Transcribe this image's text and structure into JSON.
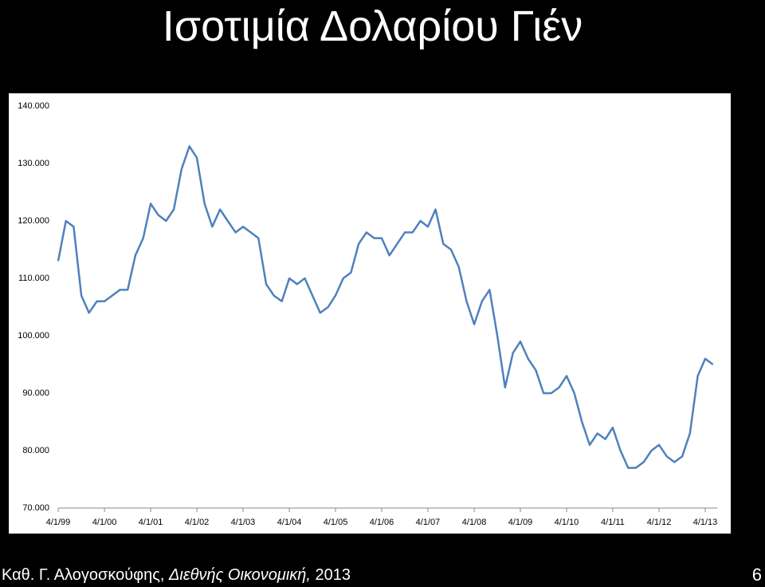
{
  "slide": {
    "title": "Ισοτιμία Δολαρίου Γιέν",
    "footer_author": "Καθ. Γ. Αλογοσκούφης,",
    "footer_course": "Διεθνής Οικονομική,",
    "footer_year": "2013",
    "page_number": "6"
  },
  "chart_data": {
    "type": "line",
    "x": [
      "4/1/99",
      "6/1/99",
      "8/1/99",
      "10/1/99",
      "12/1/99",
      "2/1/00",
      "4/1/00",
      "6/1/00",
      "8/1/00",
      "10/1/00",
      "12/1/00",
      "2/1/01",
      "4/1/01",
      "6/1/01",
      "8/1/01",
      "10/1/01",
      "12/1/01",
      "2/1/02",
      "4/1/02",
      "6/1/02",
      "8/1/02",
      "10/1/02",
      "12/1/02",
      "2/1/03",
      "4/1/03",
      "6/1/03",
      "8/1/03",
      "10/1/03",
      "12/1/03",
      "2/1/04",
      "4/1/04",
      "6/1/04",
      "8/1/04",
      "10/1/04",
      "12/1/04",
      "2/1/05",
      "4/1/05",
      "6/1/05",
      "8/1/05",
      "10/1/05",
      "12/1/05",
      "2/1/06",
      "4/1/06",
      "6/1/06",
      "8/1/06",
      "10/1/06",
      "12/1/06",
      "2/1/07",
      "4/1/07",
      "6/1/07",
      "8/1/07",
      "10/1/07",
      "12/1/07",
      "2/1/08",
      "4/1/08",
      "6/1/08",
      "8/1/08",
      "10/1/08",
      "12/1/08",
      "2/1/09",
      "4/1/09",
      "6/1/09",
      "8/1/09",
      "10/1/09",
      "12/1/09",
      "2/1/10",
      "4/1/10",
      "6/1/10",
      "8/1/10",
      "10/1/10",
      "12/1/10",
      "2/1/11",
      "4/1/11",
      "6/1/11",
      "8/1/11",
      "10/1/11",
      "12/1/11",
      "2/1/12",
      "4/1/12",
      "6/1/12",
      "8/1/12",
      "10/1/12",
      "12/1/12",
      "2/1/13",
      "4/1/13",
      "6/1/13"
    ],
    "series": [
      {
        "color": "#4f81bd",
        "values": [
          113,
          120,
          119,
          107,
          104,
          106,
          106,
          107,
          108,
          108,
          114,
          117,
          123,
          121,
          120,
          122,
          129,
          133,
          131,
          123,
          119,
          122,
          120,
          118,
          119,
          118,
          117,
          109,
          107,
          106,
          110,
          109,
          110,
          107,
          104,
          105,
          107,
          110,
          111,
          116,
          118,
          117,
          117,
          114,
          116,
          118,
          118,
          120,
          119,
          122,
          116,
          115,
          112,
          106,
          102,
          106,
          108,
          100,
          91,
          97,
          99,
          96,
          94,
          90,
          90,
          91,
          93,
          90,
          85,
          81,
          83,
          82,
          84,
          80,
          77,
          77,
          78,
          80,
          81,
          79,
          78,
          79,
          83,
          93,
          96,
          95
        ]
      }
    ],
    "xticks": [
      "4/1/99",
      "4/1/00",
      "4/1/01",
      "4/1/02",
      "4/1/03",
      "4/1/04",
      "4/1/05",
      "4/1/06",
      "4/1/07",
      "4/1/08",
      "4/1/09",
      "4/1/10",
      "4/1/11",
      "4/1/12",
      "4/1/13"
    ],
    "ylim": [
      70,
      140
    ],
    "yticks": [
      {
        "value": 70,
        "label": "70.000"
      },
      {
        "value": 80,
        "label": "80.000"
      },
      {
        "value": 90,
        "label": "90.000"
      },
      {
        "value": 100,
        "label": "100.000"
      },
      {
        "value": 110,
        "label": "110.000"
      },
      {
        "value": 120,
        "label": "120.000"
      },
      {
        "value": 130,
        "label": "130.000"
      },
      {
        "value": 140,
        "label": "140.000"
      }
    ]
  }
}
